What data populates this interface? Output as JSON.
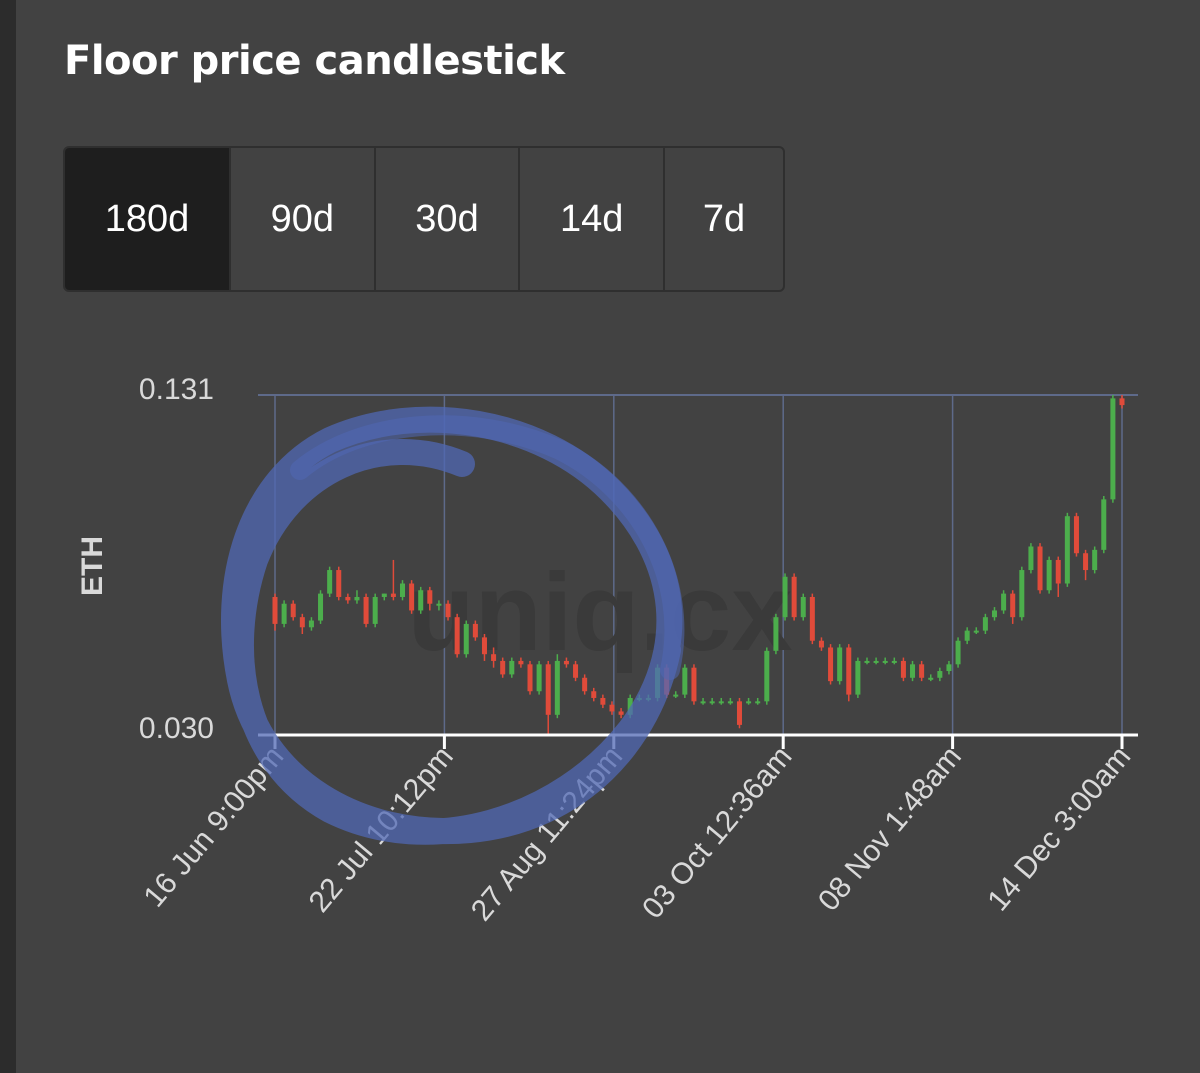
{
  "header": {
    "title": "Floor price candlestick"
  },
  "ranges": [
    {
      "label": "180d",
      "active": true
    },
    {
      "label": "90d",
      "active": false
    },
    {
      "label": "30d",
      "active": false
    },
    {
      "label": "14d",
      "active": false
    },
    {
      "label": "7d",
      "active": false
    }
  ],
  "watermark": "uniq.cx",
  "colors": {
    "up": "#4cae4c",
    "down": "#e04b3a",
    "grid": "#5e6a8a",
    "axis": "#ffffff",
    "text": "#d9d9d9",
    "circle": "#5068b4"
  },
  "chart_data": {
    "type": "candlestick",
    "ylabel": "ETH",
    "ylim": [
      0.03,
      0.131
    ],
    "yticks": [
      "0.131",
      "0.030"
    ],
    "xticks": [
      "16 Jun 9:00pm",
      "22 Jul 10:12pm",
      "27 Aug 11:24pm",
      "03 Oct 12:36am",
      "08 Nov 1:48am",
      "14 Dec 3:00am"
    ],
    "grid": true,
    "annotation": "hand-drawn blue circle around Jun–Aug period",
    "series": [
      {
        "values": [
          [
            0.071,
            0.072,
            0.061,
            0.063
          ],
          [
            0.063,
            0.07,
            0.062,
            0.069
          ],
          [
            0.069,
            0.07,
            0.064,
            0.065
          ],
          [
            0.065,
            0.066,
            0.06,
            0.062
          ],
          [
            0.062,
            0.065,
            0.061,
            0.064
          ],
          [
            0.064,
            0.073,
            0.063,
            0.072
          ],
          [
            0.072,
            0.08,
            0.071,
            0.079
          ],
          [
            0.079,
            0.08,
            0.07,
            0.071
          ],
          [
            0.071,
            0.072,
            0.069,
            0.07
          ],
          [
            0.07,
            0.073,
            0.069,
            0.071
          ],
          [
            0.071,
            0.072,
            0.062,
            0.063
          ],
          [
            0.063,
            0.072,
            0.062,
            0.071
          ],
          [
            0.071,
            0.072,
            0.07,
            0.072
          ],
          [
            0.072,
            0.082,
            0.07,
            0.071
          ],
          [
            0.071,
            0.076,
            0.07,
            0.075
          ],
          [
            0.075,
            0.076,
            0.066,
            0.067
          ],
          [
            0.067,
            0.074,
            0.066,
            0.073
          ],
          [
            0.073,
            0.074,
            0.067,
            0.069
          ],
          [
            0.069,
            0.07,
            0.067,
            0.069
          ],
          [
            0.069,
            0.07,
            0.064,
            0.065
          ],
          [
            0.065,
            0.066,
            0.053,
            0.054
          ],
          [
            0.054,
            0.064,
            0.053,
            0.063
          ],
          [
            0.063,
            0.064,
            0.058,
            0.059
          ],
          [
            0.059,
            0.06,
            0.052,
            0.054
          ],
          [
            0.054,
            0.056,
            0.05,
            0.052
          ],
          [
            0.052,
            0.053,
            0.047,
            0.048
          ],
          [
            0.048,
            0.053,
            0.047,
            0.052
          ],
          [
            0.052,
            0.053,
            0.05,
            0.051
          ],
          [
            0.051,
            0.052,
            0.042,
            0.043
          ],
          [
            0.043,
            0.052,
            0.042,
            0.051
          ],
          [
            0.051,
            0.052,
            0.03,
            0.036
          ],
          [
            0.036,
            0.054,
            0.035,
            0.052
          ],
          [
            0.052,
            0.053,
            0.05,
            0.051
          ],
          [
            0.051,
            0.052,
            0.046,
            0.047
          ],
          [
            0.047,
            0.048,
            0.042,
            0.043
          ],
          [
            0.043,
            0.044,
            0.04,
            0.041
          ],
          [
            0.041,
            0.042,
            0.038,
            0.039
          ],
          [
            0.039,
            0.04,
            0.036,
            0.037
          ],
          [
            0.037,
            0.038,
            0.035,
            0.036
          ],
          [
            0.036,
            0.042,
            0.035,
            0.041
          ],
          [
            0.041,
            0.042,
            0.04,
            0.041
          ],
          [
            0.041,
            0.042,
            0.04,
            0.041
          ],
          [
            0.041,
            0.051,
            0.04,
            0.05
          ],
          [
            0.05,
            0.051,
            0.041,
            0.042
          ],
          [
            0.042,
            0.043,
            0.041,
            0.042
          ],
          [
            0.042,
            0.051,
            0.041,
            0.05
          ],
          [
            0.05,
            0.051,
            0.039,
            0.04
          ],
          [
            0.04,
            0.041,
            0.039,
            0.04
          ],
          [
            0.04,
            0.041,
            0.039,
            0.04
          ],
          [
            0.04,
            0.041,
            0.039,
            0.04
          ],
          [
            0.04,
            0.041,
            0.039,
            0.04
          ],
          [
            0.04,
            0.041,
            0.032,
            0.033
          ],
          [
            0.04,
            0.041,
            0.039,
            0.04
          ],
          [
            0.04,
            0.041,
            0.039,
            0.04
          ],
          [
            0.04,
            0.056,
            0.039,
            0.055
          ],
          [
            0.055,
            0.066,
            0.054,
            0.065
          ],
          [
            0.065,
            0.078,
            0.064,
            0.077
          ],
          [
            0.077,
            0.078,
            0.064,
            0.065
          ],
          [
            0.065,
            0.072,
            0.064,
            0.071
          ],
          [
            0.071,
            0.072,
            0.057,
            0.058
          ],
          [
            0.058,
            0.059,
            0.055,
            0.056
          ],
          [
            0.056,
            0.057,
            0.045,
            0.046
          ],
          [
            0.046,
            0.057,
            0.045,
            0.056
          ],
          [
            0.056,
            0.057,
            0.04,
            0.042
          ],
          [
            0.042,
            0.053,
            0.041,
            0.052
          ],
          [
            0.052,
            0.053,
            0.051,
            0.052
          ],
          [
            0.052,
            0.053,
            0.051,
            0.052
          ],
          [
            0.052,
            0.053,
            0.051,
            0.052
          ],
          [
            0.052,
            0.053,
            0.051,
            0.052
          ],
          [
            0.052,
            0.053,
            0.046,
            0.047
          ],
          [
            0.047,
            0.052,
            0.046,
            0.051
          ],
          [
            0.051,
            0.052,
            0.046,
            0.047
          ],
          [
            0.047,
            0.048,
            0.046,
            0.047
          ],
          [
            0.047,
            0.05,
            0.046,
            0.049
          ],
          [
            0.049,
            0.052,
            0.048,
            0.051
          ],
          [
            0.051,
            0.059,
            0.05,
            0.058
          ],
          [
            0.058,
            0.062,
            0.057,
            0.061
          ],
          [
            0.061,
            0.062,
            0.06,
            0.061
          ],
          [
            0.061,
            0.066,
            0.06,
            0.065
          ],
          [
            0.065,
            0.068,
            0.064,
            0.067
          ],
          [
            0.067,
            0.073,
            0.066,
            0.072
          ],
          [
            0.072,
            0.073,
            0.063,
            0.065
          ],
          [
            0.065,
            0.08,
            0.064,
            0.079
          ],
          [
            0.079,
            0.087,
            0.078,
            0.086
          ],
          [
            0.086,
            0.087,
            0.072,
            0.073
          ],
          [
            0.073,
            0.083,
            0.072,
            0.082
          ],
          [
            0.082,
            0.083,
            0.071,
            0.075
          ],
          [
            0.075,
            0.096,
            0.074,
            0.095
          ],
          [
            0.095,
            0.096,
            0.083,
            0.084
          ],
          [
            0.084,
            0.085,
            0.076,
            0.079
          ],
          [
            0.079,
            0.086,
            0.078,
            0.085
          ],
          [
            0.085,
            0.101,
            0.084,
            0.1
          ],
          [
            0.1,
            0.131,
            0.099,
            0.13
          ],
          [
            0.13,
            0.131,
            0.127,
            0.128
          ]
        ]
      }
    ]
  }
}
